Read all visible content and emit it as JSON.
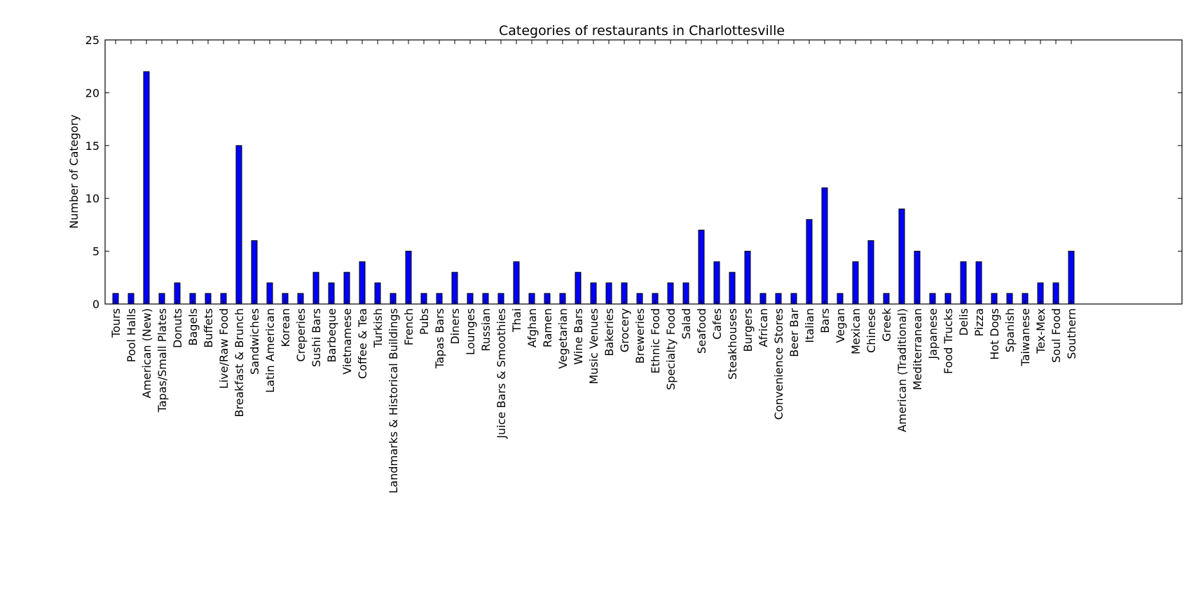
{
  "chart_data": {
    "type": "bar",
    "title": "Categories of restaurants in Charlottesville",
    "xlabel": "",
    "ylabel": "Number of Category",
    "ylim": [
      0,
      25
    ],
    "yticks": [
      "0",
      "5",
      "10",
      "15",
      "20",
      "25"
    ],
    "grid": false,
    "bar_color": "#0000ff",
    "categories": [
      "Tours",
      "Pool Halls",
      "American (New)",
      "Tapas/Small Plates",
      "Donuts",
      "Bagels",
      "Buffets",
      "Live/Raw Food",
      "Breakfast & Brunch",
      "Sandwiches",
      "Latin American",
      "Korean",
      "Creperies",
      "Sushi Bars",
      "Barbeque",
      "Vietnamese",
      "Coffee & Tea",
      "Turkish",
      "Landmarks & Historical Buildings",
      "French",
      "Pubs",
      "Tapas Bars",
      "Diners",
      "Lounges",
      "Russian",
      "Juice Bars & Smoothies",
      "Thai",
      "Afghan",
      "Ramen",
      "Vegetarian",
      "Wine Bars",
      "Music Venues",
      "Bakeries",
      "Grocery",
      "Breweries",
      "Ethnic Food",
      "Specialty Food",
      "Salad",
      "Seafood",
      "Cafes",
      "Steakhouses",
      "Burgers",
      "African",
      "Convenience Stores",
      "Beer Bar",
      "Italian",
      "Bars",
      "Vegan",
      "Mexican",
      "Chinese",
      "Greek",
      "American (Traditional)",
      "Mediterranean",
      "Japanese",
      "Food Trucks",
      "Delis",
      "Pizza",
      "Hot Dogs",
      "Spanish",
      "Taiwanese",
      "Tex-Mex",
      "Soul Food",
      "Southern"
    ],
    "values": [
      1,
      1,
      22,
      1,
      2,
      1,
      1,
      1,
      15,
      6,
      2,
      1,
      1,
      3,
      2,
      3,
      4,
      2,
      1,
      5,
      1,
      1,
      3,
      1,
      1,
      1,
      4,
      1,
      1,
      1,
      3,
      2,
      2,
      2,
      1,
      1,
      2,
      2,
      7,
      4,
      3,
      5,
      1,
      1,
      1,
      8,
      11,
      1,
      4,
      6,
      1,
      9,
      5,
      1,
      1,
      4,
      4,
      1,
      1,
      1,
      2,
      2,
      5
    ]
  }
}
